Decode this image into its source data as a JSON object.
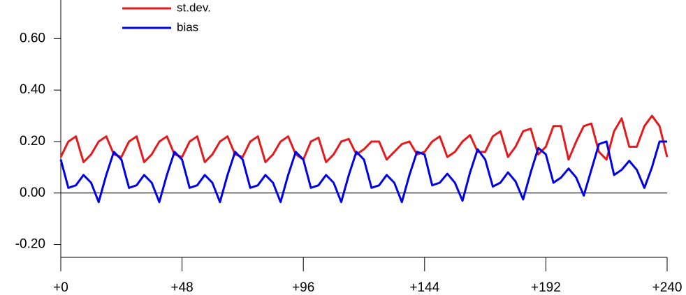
{
  "chart_data": {
    "type": "line",
    "x": [
      0,
      3,
      6,
      9,
      12,
      15,
      18,
      21,
      24,
      27,
      30,
      33,
      36,
      39,
      42,
      45,
      48,
      51,
      54,
      57,
      60,
      63,
      66,
      69,
      72,
      75,
      78,
      81,
      84,
      87,
      90,
      93,
      96,
      99,
      102,
      105,
      108,
      111,
      114,
      117,
      120,
      123,
      126,
      129,
      132,
      135,
      138,
      141,
      144,
      147,
      150,
      153,
      156,
      159,
      162,
      165,
      168,
      171,
      174,
      177,
      180,
      183,
      186,
      189,
      192,
      195,
      198,
      201,
      204,
      207,
      210,
      213,
      216,
      219,
      222,
      225,
      228,
      231,
      234,
      237,
      240
    ],
    "series": [
      {
        "name": "st.dev.",
        "color": "#e41a1c",
        "values": [
          0.14,
          0.2,
          0.22,
          0.12,
          0.15,
          0.2,
          0.22,
          0.15,
          0.14,
          0.2,
          0.22,
          0.12,
          0.15,
          0.2,
          0.22,
          0.15,
          0.14,
          0.2,
          0.22,
          0.12,
          0.15,
          0.2,
          0.22,
          0.15,
          0.14,
          0.2,
          0.22,
          0.12,
          0.15,
          0.2,
          0.22,
          0.15,
          0.13,
          0.2,
          0.215,
          0.12,
          0.15,
          0.2,
          0.21,
          0.15,
          0.17,
          0.2,
          0.2,
          0.13,
          0.16,
          0.19,
          0.2,
          0.15,
          0.16,
          0.2,
          0.22,
          0.14,
          0.16,
          0.2,
          0.225,
          0.16,
          0.16,
          0.22,
          0.24,
          0.14,
          0.18,
          0.24,
          0.25,
          0.15,
          0.18,
          0.26,
          0.26,
          0.13,
          0.2,
          0.26,
          0.27,
          0.16,
          0.13,
          0.24,
          0.29,
          0.18,
          0.18,
          0.26,
          0.3,
          0.26,
          0.14
        ]
      },
      {
        "name": "bias",
        "color": "#0000e6",
        "values": [
          0.13,
          0.02,
          0.03,
          0.07,
          0.04,
          -0.035,
          0.07,
          0.16,
          0.13,
          0.02,
          0.03,
          0.07,
          0.04,
          -0.035,
          0.07,
          0.16,
          0.13,
          0.02,
          0.03,
          0.07,
          0.04,
          -0.035,
          0.07,
          0.16,
          0.13,
          0.02,
          0.03,
          0.07,
          0.04,
          -0.035,
          0.07,
          0.16,
          0.13,
          0.02,
          0.03,
          0.07,
          0.04,
          -0.035,
          0.07,
          0.16,
          0.13,
          0.02,
          0.03,
          0.07,
          0.04,
          -0.035,
          0.07,
          0.16,
          0.15,
          0.03,
          0.04,
          0.075,
          0.04,
          -0.03,
          0.08,
          0.17,
          0.13,
          0.025,
          0.04,
          0.08,
          0.045,
          -0.025,
          0.08,
          0.175,
          0.15,
          0.04,
          0.06,
          0.095,
          0.06,
          -0.01,
          0.09,
          0.19,
          0.2,
          0.07,
          0.09,
          0.125,
          0.09,
          0.02,
          0.1,
          0.2,
          0.2
        ]
      }
    ],
    "xlim": [
      0,
      240
    ],
    "xticks": [
      {
        "value": 0,
        "label": "+0"
      },
      {
        "value": 48,
        "label": "+48"
      },
      {
        "value": 96,
        "label": "+96"
      },
      {
        "value": 144,
        "label": "+144"
      },
      {
        "value": 192,
        "label": "+192"
      },
      {
        "value": 240,
        "label": "+240"
      }
    ],
    "ylim": [
      -0.25,
      0.75
    ],
    "yticks": [
      {
        "value": -0.2,
        "label": "-0.20"
      },
      {
        "value": 0,
        "label": "0.00"
      },
      {
        "value": 0.2,
        "label": "0.20"
      },
      {
        "value": 0.4,
        "label": "0.40"
      },
      {
        "value": 0.6,
        "label": "0.60"
      }
    ],
    "zero_line": true,
    "legend": "upper left"
  }
}
